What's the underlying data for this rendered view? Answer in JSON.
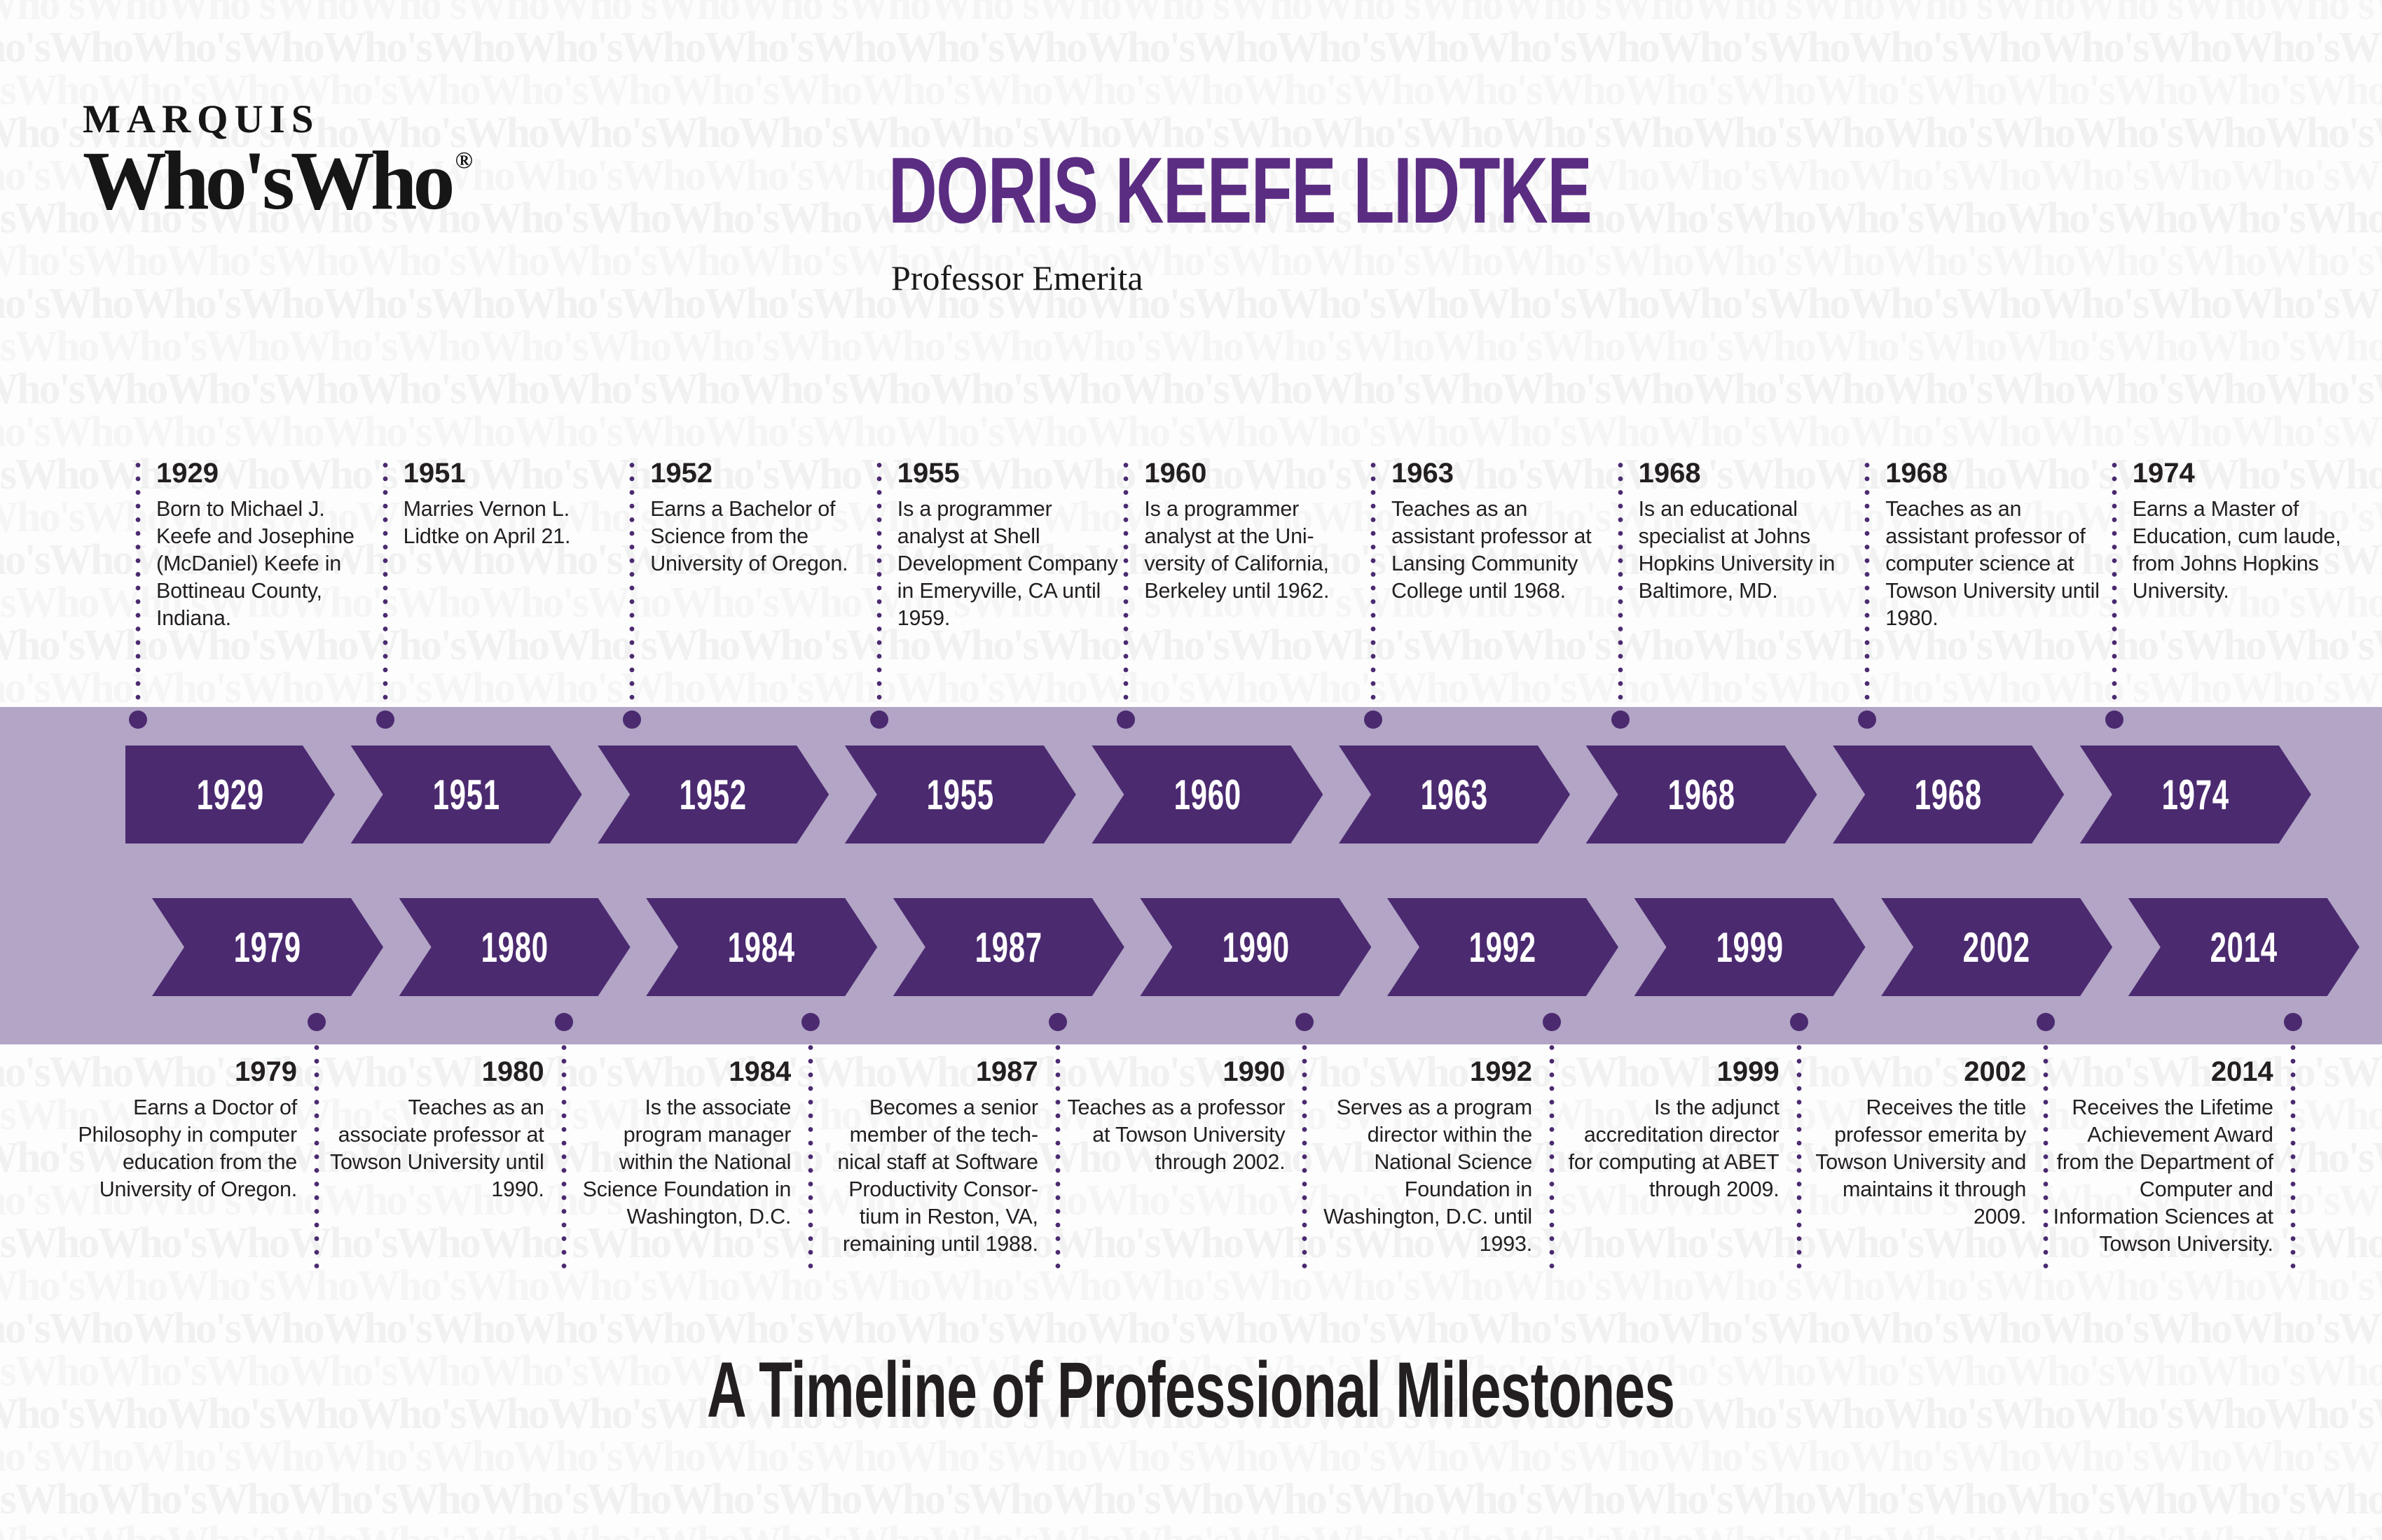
{
  "brand": {
    "line1": "MARQUIS",
    "line2": "Who'sWho",
    "registered": "®"
  },
  "header": {
    "name": "DORIS KEEFE LIDTKE",
    "subtitle": "Professor Emerita"
  },
  "footer": {
    "title": "A Timeline of Professional Milestones"
  },
  "watermark_text": "Who'sWho",
  "colors": {
    "arrow_purple": "#4b2a70",
    "band_lavender": "#b2a5c5",
    "title_purple": "#5b2d82",
    "ink": "#231f20",
    "year_text_on_arrow": "#ffffff"
  },
  "timeline": {
    "top_row": [
      {
        "year": "1929",
        "description": "Born to Michael J. Keefe and Josephine (McDaniel) Keefe in Bottineau County, Indiana."
      },
      {
        "year": "1951",
        "description": "Marries Vernon L. Lidtke on April 21."
      },
      {
        "year": "1952",
        "description": "Earns a Bachelor of Science from the University of Oregon."
      },
      {
        "year": "1955",
        "description": "Is a programmer analyst at Shell Development Company in Emeryville, CA until 1959."
      },
      {
        "year": "1960",
        "description": "Is a programmer analyst at the Uni-versity of California, Berkeley until 1962."
      },
      {
        "year": "1963",
        "description": "Teaches as an assistant professor at Lansing Community College until 1968."
      },
      {
        "year": "1968",
        "description": "Is an educational specialist at Johns Hopkins University in Baltimore, MD."
      },
      {
        "year": "1968",
        "description": "Teaches as an assistant professor of computer science at Towson University until 1980."
      },
      {
        "year": "1974",
        "description": "Earns a Master of Education, cum laude, from Johns Hopkins University."
      }
    ],
    "bottom_row": [
      {
        "year": "1979",
        "description": "Earns a Doctor of Philosophy in computer education from the University of Oregon."
      },
      {
        "year": "1980",
        "description": "Teaches as an associate professor at Towson University until 1990."
      },
      {
        "year": "1984",
        "description": "Is the associate program manager within the National Science Foundation in Washington, D.C."
      },
      {
        "year": "1987",
        "description": "Becomes a senior member of the tech-nical staff at Software Productivity Consor-tium in Reston, VA, remaining until 1988."
      },
      {
        "year": "1990",
        "description": "Teaches as a professor at Towson University through 2002."
      },
      {
        "year": "1992",
        "description": "Serves as a program director within the National Science Foundation in Washington, D.C. until 1993."
      },
      {
        "year": "1999",
        "description": "Is the adjunct accreditation director for computing at ABET through 2009."
      },
      {
        "year": "2002",
        "description": "Receives the title professor emerita by Towson University and maintains it through 2009."
      },
      {
        "year": "2014",
        "description": "Receives the Lifetime Achievement Award from the Department of Computer and Information Sciences at Towson University."
      }
    ]
  }
}
